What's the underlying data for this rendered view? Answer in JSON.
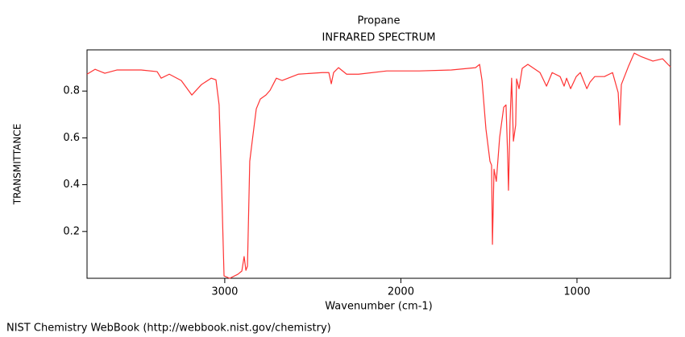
{
  "chart_data": {
    "type": "line",
    "title": "Propane",
    "subtitle": "INFRARED SPECTRUM",
    "x_label": "Wavenumber (cm-1)",
    "y_label": "TRANSMITTANCE",
    "source": "NIST Chemistry WebBook (http://webbook.nist.gov/chemistry)",
    "xlim": [
      3782,
      469
    ],
    "ylim": [
      0,
      0.976
    ],
    "xticks": [
      3000,
      2000,
      1000
    ],
    "yticks": [
      0.2,
      0.4,
      0.6,
      0.8
    ],
    "series": [
      {
        "color": "#ff3333",
        "x": [
          3782,
          3736,
          3681,
          3613,
          3475,
          3384,
          3361,
          3315,
          3247,
          3187,
          3132,
          3077,
          3050,
          3032,
          3018,
          3004,
          2972,
          2926,
          2903,
          2890,
          2880,
          2871,
          2858,
          2844,
          2821,
          2798,
          2766,
          2743,
          2707,
          2674,
          2583,
          2446,
          2409,
          2395,
          2382,
          2354,
          2308,
          2240,
          2080,
          1896,
          1713,
          1576,
          1553,
          1539,
          1517,
          1494,
          1485,
          1480,
          1471,
          1458,
          1439,
          1416,
          1403,
          1394,
          1389,
          1380,
          1371,
          1361,
          1348,
          1343,
          1329,
          1311,
          1279,
          1210,
          1173,
          1141,
          1096,
          1073,
          1059,
          1036,
          1004,
          981,
          944,
          926,
          899,
          844,
          798,
          766,
          757,
          748,
          707,
          675,
          638,
          569,
          514,
          469
        ],
        "values": [
          0.872,
          0.893,
          0.876,
          0.89,
          0.89,
          0.883,
          0.855,
          0.872,
          0.845,
          0.783,
          0.828,
          0.855,
          0.848,
          0.741,
          0.397,
          0.01,
          0.0,
          0.017,
          0.031,
          0.093,
          0.034,
          0.052,
          0.5,
          0.586,
          0.724,
          0.766,
          0.783,
          0.803,
          0.855,
          0.845,
          0.872,
          0.879,
          0.879,
          0.831,
          0.879,
          0.9,
          0.872,
          0.872,
          0.886,
          0.886,
          0.89,
          0.9,
          0.914,
          0.845,
          0.638,
          0.5,
          0.483,
          0.145,
          0.466,
          0.414,
          0.603,
          0.731,
          0.741,
          0.534,
          0.376,
          0.672,
          0.855,
          0.586,
          0.655,
          0.852,
          0.81,
          0.897,
          0.914,
          0.879,
          0.821,
          0.879,
          0.862,
          0.821,
          0.855,
          0.81,
          0.862,
          0.879,
          0.81,
          0.838,
          0.862,
          0.862,
          0.879,
          0.793,
          0.655,
          0.828,
          0.907,
          0.962,
          0.948,
          0.928,
          0.938,
          0.903
        ]
      }
    ]
  }
}
